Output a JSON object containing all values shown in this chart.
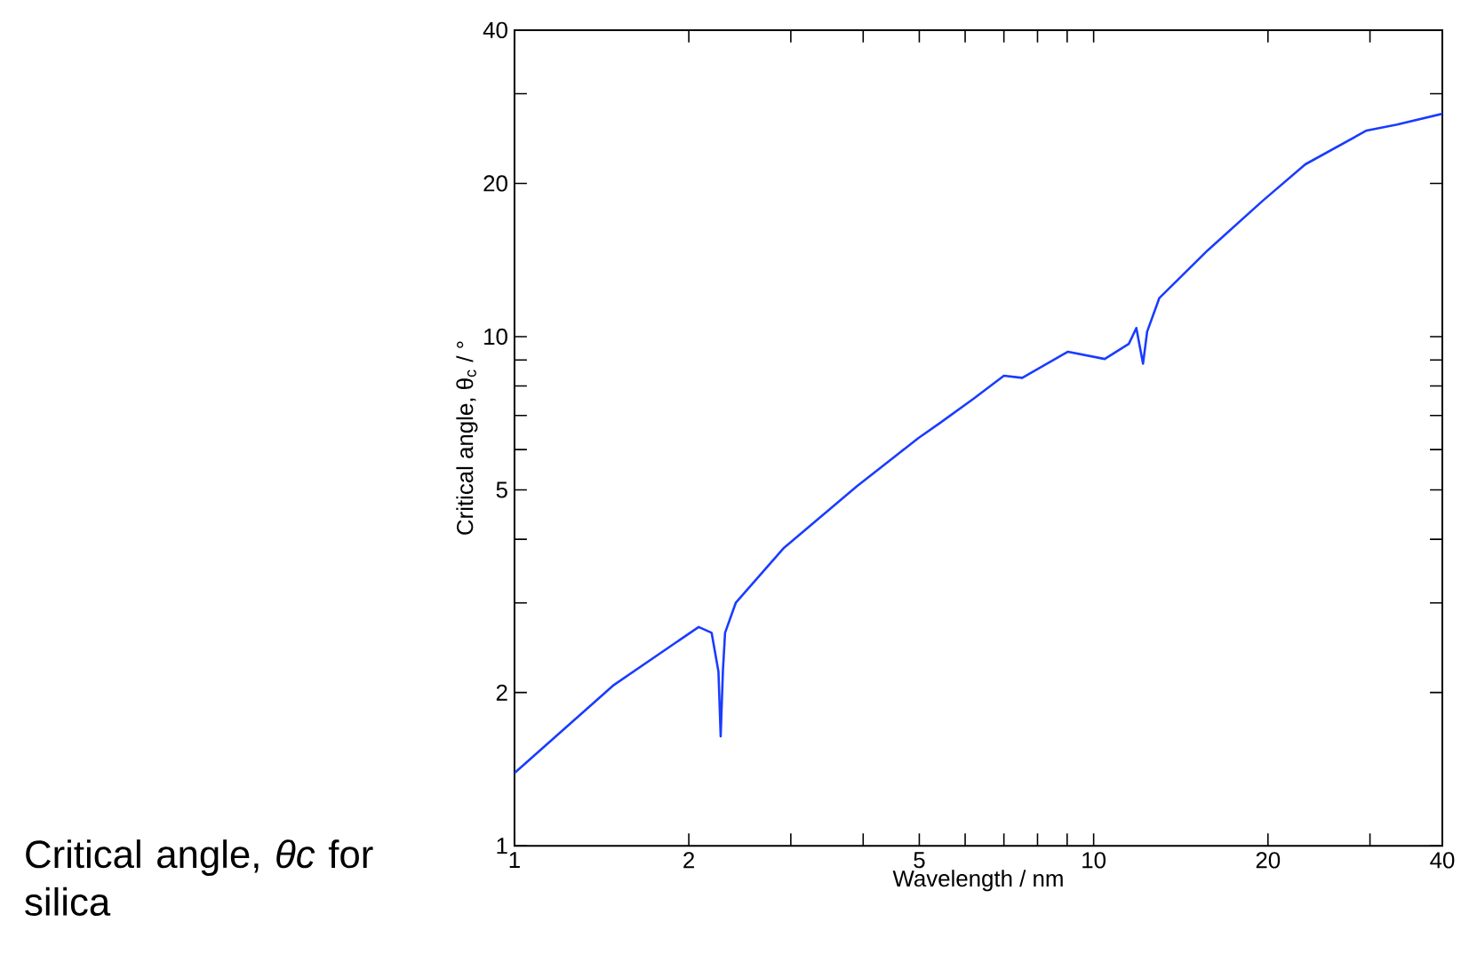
{
  "chart_data": {
    "type": "line",
    "xlabel": "Wavelength / nm",
    "ylabel": "Critical angle, θ$_{c}$ / °",
    "annotations": [
      "Critical angle, *θc* for silica"
    ],
    "log": "xy",
    "line_style": "solid",
    "xlim": [
      1,
      40
    ],
    "ylim": [
      1,
      40
    ],
    "xticks": [
      1,
      2,
      {
        "value": 3,
        "label": null
      },
      {
        "value": 4,
        "label": null
      },
      5,
      {
        "value": 6,
        "label": null
      },
      {
        "value": 7,
        "label": null
      },
      {
        "value": 8,
        "label": null
      },
      {
        "value": 9,
        "label": null
      },
      10,
      20,
      {
        "value": 30,
        "label": null
      },
      40
    ],
    "yticks": [
      1,
      2,
      {
        "value": 3,
        "label": null
      },
      {
        "value": 4,
        "label": null
      },
      5,
      {
        "value": 6,
        "label": null
      },
      {
        "value": 7,
        "label": null
      },
      {
        "value": 8,
        "label": null
      },
      {
        "value": 9,
        "label": null
      },
      10,
      20,
      {
        "value": 30,
        "label": null
      },
      40
    ],
    "series": [
      {
        "color": "#1a3cff",
        "x": [
          1,
          1.485,
          2.08,
          2.19,
          2.25,
          2.27,
          2.29,
          2.31,
          2.41,
          2.92,
          3.9,
          4.98,
          5.43,
          6.2,
          7.0,
          7.53,
          9.03,
          10.45,
          11.5,
          11.85,
          12.17,
          12.37,
          12.98,
          15.76,
          19.6,
          23.2,
          29.6,
          33.4,
          40
        ],
        "values": [
          1.39,
          2.07,
          2.69,
          2.62,
          2.2,
          1.64,
          2.2,
          2.62,
          3.0,
          3.85,
          5.08,
          6.32,
          6.77,
          7.55,
          8.38,
          8.3,
          9.34,
          9.04,
          9.68,
          10.4,
          8.85,
          10.23,
          11.9,
          14.8,
          18.5,
          21.8,
          25.4,
          26.1,
          27.4
        ]
      }
    ]
  }
}
